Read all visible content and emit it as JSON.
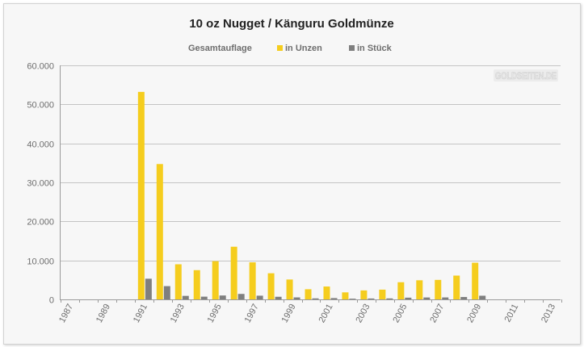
{
  "chart_data": {
    "type": "bar",
    "title": "10 oz Nugget / Känguru Goldmünze",
    "legend_title": "Gesamtauflage",
    "legend_position": "top",
    "grid": true,
    "xlabel": "",
    "ylabel": "",
    "ylim": [
      0,
      60000
    ],
    "y_ticks": [
      "60.000",
      "50.000",
      "40.000",
      "30.000",
      "20.000",
      "10.000",
      "0"
    ],
    "y_tick_values": [
      60000,
      50000,
      40000,
      30000,
      20000,
      10000,
      0
    ],
    "x_tick_labels": [
      "1987",
      "1989",
      "1991",
      "1993",
      "1995",
      "1997",
      "1999",
      "2001",
      "2003",
      "2005",
      "2007",
      "2009",
      "2011",
      "2013"
    ],
    "categories": [
      "1987",
      "1988",
      "1989",
      "1990",
      "1991",
      "1992",
      "1993",
      "1994",
      "1995",
      "1996",
      "1997",
      "1998",
      "1999",
      "2000",
      "2001",
      "2002",
      "2003",
      "2004",
      "2005",
      "2006",
      "2007",
      "2008",
      "2009",
      "2010",
      "2011",
      "2012",
      "2013"
    ],
    "series": [
      {
        "name": "in Unzen",
        "color": "#f5cd1e",
        "values": [
          0,
          0,
          0,
          0,
          53200,
          34700,
          9000,
          7500,
          9800,
          13500,
          9500,
          6700,
          5100,
          2600,
          3300,
          1800,
          2300,
          2500,
          4400,
          4900,
          5000,
          6100,
          9400,
          0,
          0,
          0,
          0
        ]
      },
      {
        "name": "in Stück",
        "color": "#7f7f7f",
        "values": [
          0,
          0,
          0,
          0,
          5300,
          3400,
          900,
          700,
          1000,
          1400,
          950,
          670,
          510,
          260,
          330,
          180,
          230,
          250,
          440,
          490,
          500,
          610,
          940,
          0,
          0,
          0,
          0
        ]
      }
    ]
  },
  "watermark": {
    "text": "GOLDSEITEN.DE"
  }
}
